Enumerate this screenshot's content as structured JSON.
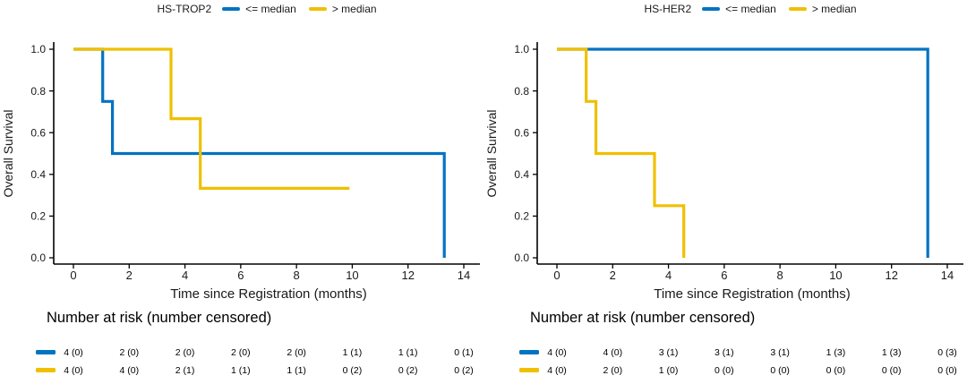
{
  "figure": {
    "background": "#ffffff",
    "axis_color": "#000000",
    "text_color": "#1a1a1a"
  },
  "colors": {
    "blue": "#0073C2",
    "yellow": "#EFC000"
  },
  "chart_data": [
    {
      "type": "line",
      "subtype": "kaplan-meier-step",
      "legend_title": "HS-TROP2",
      "legend_position": "top",
      "grid": false,
      "xlabel": "Time since Registration (months)",
      "ylabel": "Overall Survival",
      "xlim": [
        0,
        14
      ],
      "ylim": [
        0,
        1
      ],
      "xticks": [
        "0",
        "2",
        "4",
        "6",
        "8",
        "10",
        "12",
        "14"
      ],
      "xtick_values": [
        0,
        2,
        4,
        6,
        8,
        10,
        12,
        14
      ],
      "yticks": [
        "0.0",
        "0.2",
        "0.4",
        "0.6",
        "0.8",
        "1.0"
      ],
      "ytick_values": [
        0,
        0.2,
        0.4,
        0.6,
        0.8,
        1.0
      ],
      "series": [
        {
          "name": "<= median",
          "color_key": "blue",
          "color": "#0073C2",
          "steps": [
            [
              0,
              1.0
            ],
            [
              1.05,
              1.0
            ],
            [
              1.05,
              0.75
            ],
            [
              1.4,
              0.75
            ],
            [
              1.4,
              0.5
            ],
            [
              13.3,
              0.5
            ],
            [
              13.3,
              0.0
            ]
          ]
        },
        {
          "name": "> median",
          "color_key": "yellow",
          "color": "#EFC000",
          "steps": [
            [
              0,
              1.0
            ],
            [
              3.5,
              1.0
            ],
            [
              3.5,
              0.667
            ],
            [
              4.55,
              0.667
            ],
            [
              4.55,
              0.333
            ],
            [
              9.9,
              0.333
            ]
          ]
        }
      ],
      "risk_table": {
        "title": "Number at risk (number censored)",
        "times": [
          0,
          2,
          4,
          6,
          8,
          10,
          12,
          14
        ],
        "rows": [
          {
            "series": "<= median",
            "color_key": "blue",
            "color": "#0073C2",
            "values": [
              "4 (0)",
              "2 (0)",
              "2 (0)",
              "2 (0)",
              "2 (0)",
              "1 (1)",
              "1 (1)",
              "0 (1)"
            ]
          },
          {
            "series": "> median",
            "color_key": "yellow",
            "color": "#EFC000",
            "values": [
              "4 (0)",
              "4 (0)",
              "2 (1)",
              "1 (1)",
              "1 (1)",
              "0 (2)",
              "0 (2)",
              "0 (2)"
            ]
          }
        ]
      }
    },
    {
      "type": "line",
      "subtype": "kaplan-meier-step",
      "legend_title": "HS-HER2",
      "legend_position": "top",
      "grid": false,
      "xlabel": "Time since Registration (months)",
      "ylabel": "Overall Survival",
      "xlim": [
        0,
        14
      ],
      "ylim": [
        0,
        1
      ],
      "xticks": [
        "0",
        "2",
        "4",
        "6",
        "8",
        "10",
        "12",
        "14"
      ],
      "xtick_values": [
        0,
        2,
        4,
        6,
        8,
        10,
        12,
        14
      ],
      "yticks": [
        "0.0",
        "0.2",
        "0.4",
        "0.6",
        "0.8",
        "1.0"
      ],
      "ytick_values": [
        0,
        0.2,
        0.4,
        0.6,
        0.8,
        1.0
      ],
      "series": [
        {
          "name": "<= median",
          "color_key": "blue",
          "color": "#0073C2",
          "steps": [
            [
              0,
              1.0
            ],
            [
              13.3,
              1.0
            ],
            [
              13.3,
              0.0
            ]
          ]
        },
        {
          "name": "> median",
          "color_key": "yellow",
          "color": "#EFC000",
          "steps": [
            [
              0,
              1.0
            ],
            [
              1.05,
              1.0
            ],
            [
              1.05,
              0.75
            ],
            [
              1.4,
              0.75
            ],
            [
              1.4,
              0.5
            ],
            [
              3.5,
              0.5
            ],
            [
              3.5,
              0.25
            ],
            [
              4.55,
              0.25
            ],
            [
              4.55,
              0.0
            ]
          ]
        }
      ],
      "risk_table": {
        "title": "Number at risk (number censored)",
        "times": [
          0,
          2,
          4,
          6,
          8,
          10,
          12,
          14
        ],
        "rows": [
          {
            "series": "<= median",
            "color_key": "blue",
            "color": "#0073C2",
            "values": [
              "4 (0)",
              "4 (0)",
              "3 (1)",
              "3 (1)",
              "3 (1)",
              "1 (3)",
              "1 (3)",
              "0 (3)"
            ]
          },
          {
            "series": "> median",
            "color_key": "yellow",
            "color": "#EFC000",
            "values": [
              "4 (0)",
              "2 (0)",
              "1 (0)",
              "0 (0)",
              "0 (0)",
              "0 (0)",
              "0 (0)",
              "0 (0)"
            ]
          }
        ]
      }
    }
  ]
}
